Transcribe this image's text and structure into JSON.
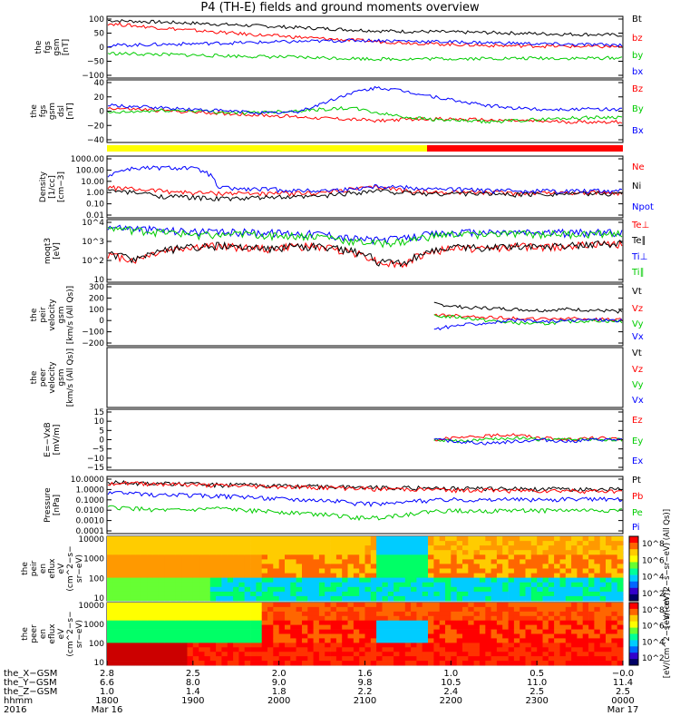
{
  "title": "P4 (TH-E) fields and ground moments overview",
  "chart_data": [
    {
      "type": "line",
      "panel": "fgs-gsm",
      "ylabel": [
        "the",
        "fgs",
        "gsm",
        "[nT]"
      ],
      "ylim": [
        -100,
        100
      ],
      "yticks": [
        "100",
        "50",
        "0",
        "−50",
        "−100"
      ],
      "series": [
        {
          "name": "Bt",
          "color": "#000000",
          "values": [
            95,
            92,
            89,
            86,
            82,
            78,
            74,
            70,
            66,
            62,
            58,
            56,
            55,
            53,
            52,
            50,
            48,
            46,
            45,
            43
          ]
        },
        {
          "name": "bz",
          "color": "#ff0000",
          "values": [
            84,
            76,
            68,
            61,
            54,
            47,
            41,
            36,
            30,
            25,
            20,
            16,
            12,
            9,
            6,
            5,
            4,
            3,
            2,
            2
          ]
        },
        {
          "name": "by",
          "color": "#00cc00",
          "values": [
            -22,
            -24,
            -26,
            -28,
            -30,
            -32,
            -34,
            -36,
            -38,
            -40,
            -42,
            -42,
            -41,
            -41,
            -40,
            -40,
            -39,
            -40,
            -39,
            -38
          ]
        },
        {
          "name": "bx",
          "color": "#0000ff",
          "values": [
            6,
            8,
            10,
            12,
            14,
            16,
            18,
            20,
            22,
            24,
            24,
            22,
            20,
            18,
            16,
            14,
            12,
            10,
            9,
            8
          ]
        }
      ]
    },
    {
      "type": "line",
      "panel": "fgs-gsm-dsl",
      "ylabel": [
        "the",
        "fgs",
        "gsm",
        "dsl",
        "[nT]"
      ],
      "ylim": [
        -50,
        40
      ],
      "yticks": [
        "40",
        "20",
        "0",
        "−20",
        "−40"
      ],
      "series": [
        {
          "name": "Bz",
          "color": "#ff0000",
          "values": [
            0,
            -2,
            -4,
            -6,
            -8,
            -10,
            -12,
            -14,
            -16,
            -18,
            -20,
            -18,
            -17,
            -18,
            -19,
            -20,
            -21,
            -22,
            -22,
            -22
          ]
        },
        {
          "name": "By",
          "color": "#00cc00",
          "values": [
            -8,
            -6,
            -4,
            -4,
            -6,
            -8,
            -6,
            -4,
            -2,
            0,
            -8,
            -14,
            -18,
            -20,
            -22,
            -20,
            -18,
            -16,
            -15,
            -14
          ]
        },
        {
          "name": "Bx",
          "color": "#0000ff",
          "values": [
            4,
            2,
            0,
            -2,
            -4,
            -6,
            -8,
            -6,
            8,
            24,
            32,
            26,
            18,
            10,
            4,
            0,
            -2,
            -2,
            -2,
            -2
          ]
        }
      ]
    },
    {
      "type": "line",
      "panel": "density",
      "ylabel": [
        "Density",
        "[1/cc]",
        "[cm−3]"
      ],
      "yscale": "log",
      "yticks": [
        "1000.00",
        "100.00",
        "10.00",
        "1.00",
        "0.10",
        "0.01"
      ],
      "series": [
        {
          "name": "Ne",
          "color": "#ff0000",
          "values": [
            3,
            2,
            1.5,
            1,
            0.9,
            0.9,
            0.8,
            0.9,
            1,
            2,
            3,
            1.5,
            1,
            1.2,
            1,
            0.9,
            1,
            1,
            1,
            1
          ]
        },
        {
          "name": "Ni",
          "color": "#000000",
          "values": [
            1.5,
            1,
            0.5,
            0.4,
            0.3,
            0.3,
            0.4,
            0.4,
            0.5,
            1,
            1.5,
            1,
            0.8,
            0.9,
            0.8,
            0.7,
            0.8,
            0.8,
            0.8,
            0.8
          ]
        },
        {
          "name": "Npot",
          "color": "#0000ff",
          "values": [
            30,
            150,
            160,
            160,
            3,
            2,
            2,
            1.5,
            1.5,
            2,
            4,
            3,
            2,
            2,
            1.5,
            1.5,
            1.5,
            1.5,
            1.5,
            1.5
          ]
        }
      ]
    },
    {
      "type": "line",
      "panel": "temperature",
      "ylabel": [
        "moqt3",
        "[eV]"
      ],
      "yscale": "log",
      "yticks": [
        "10^4",
        "10^3",
        "10^2",
        "10"
      ],
      "series": [
        {
          "name": "Te⊥",
          "color": "#ff0000",
          "values": [
            200,
            100,
            300,
            500,
            600,
            500,
            400,
            600,
            500,
            300,
            80,
            60,
            300,
            500,
            400,
            600,
            500,
            600,
            700,
            800
          ]
        },
        {
          "name": "Te∥",
          "color": "#000000",
          "values": [
            220,
            110,
            320,
            520,
            620,
            520,
            420,
            620,
            520,
            320,
            90,
            70,
            320,
            520,
            420,
            620,
            520,
            620,
            720,
            820
          ]
        },
        {
          "name": "Ti⊥",
          "color": "#0000ff",
          "values": [
            6000,
            5000,
            4000,
            3500,
            3000,
            3200,
            3000,
            2800,
            2500,
            1500,
            1200,
            1500,
            2500,
            3000,
            3000,
            3000,
            3000,
            3000,
            3000,
            3000
          ]
        },
        {
          "name": "Ti∥",
          "color": "#00cc00",
          "values": [
            5000,
            4000,
            3000,
            2500,
            2000,
            2500,
            2200,
            2000,
            1800,
            1000,
            800,
            1000,
            2000,
            2500,
            2500,
            2500,
            2500,
            2500,
            2500,
            2500
          ]
        }
      ]
    },
    {
      "type": "line",
      "panel": "peir-velocity",
      "ylabel": [
        "the",
        "peir",
        "velocity",
        "gsm",
        "[km/s (All Qs)]"
      ],
      "ylim": [
        -200,
        300
      ],
      "yticks": [
        "300",
        "200",
        "100",
        "0",
        "−100",
        "−200"
      ],
      "series": [
        {
          "name": "Vt",
          "color": "#000000",
          "values": [
            null,
            null,
            null,
            null,
            null,
            null,
            null,
            null,
            null,
            null,
            null,
            null,
            150,
            120,
            110,
            100,
            90,
            100,
            90,
            80
          ]
        },
        {
          "name": "Vz",
          "color": "#ff0000",
          "values": [
            null,
            null,
            null,
            null,
            null,
            null,
            null,
            null,
            null,
            null,
            null,
            null,
            50,
            40,
            30,
            20,
            10,
            20,
            10,
            10
          ]
        },
        {
          "name": "Vy",
          "color": "#00cc00",
          "values": [
            null,
            null,
            null,
            null,
            null,
            null,
            null,
            null,
            null,
            null,
            null,
            null,
            40,
            30,
            0,
            -20,
            -30,
            -10,
            0,
            -10
          ]
        },
        {
          "name": "Vx",
          "color": "#0000ff",
          "values": [
            null,
            null,
            null,
            null,
            null,
            null,
            null,
            null,
            null,
            null,
            null,
            null,
            -80,
            -40,
            -20,
            0,
            -10,
            0,
            10,
            0
          ]
        }
      ]
    },
    {
      "type": "line",
      "panel": "peer-velocity",
      "ylabel": [
        "the",
        "peer",
        "velocity",
        "gsm",
        "[km/s (All Qs)]"
      ],
      "yticks": [],
      "series": [
        {
          "name": "Vt",
          "color": "#000000",
          "values": []
        },
        {
          "name": "Vz",
          "color": "#ff0000",
          "values": []
        },
        {
          "name": "Vy",
          "color": "#00cc00",
          "values": []
        },
        {
          "name": "Vx",
          "color": "#0000ff",
          "values": []
        }
      ]
    },
    {
      "type": "line",
      "panel": "efield",
      "ylabel": [
        "E=−VxB",
        "[mV/m]"
      ],
      "ylim": [
        -15,
        15
      ],
      "yticks": [
        "15",
        "10",
        "5",
        "0",
        "−5",
        "−10",
        "−15"
      ],
      "series": [
        {
          "name": "Ez",
          "color": "#ff0000",
          "values": [
            null,
            null,
            null,
            null,
            null,
            null,
            null,
            null,
            null,
            null,
            null,
            null,
            0,
            1,
            2,
            3,
            1,
            0,
            1,
            0
          ]
        },
        {
          "name": "Ey",
          "color": "#00cc00",
          "values": [
            null,
            null,
            null,
            null,
            null,
            null,
            null,
            null,
            null,
            null,
            null,
            null,
            0,
            -1,
            0,
            1,
            0,
            0,
            0,
            0
          ]
        },
        {
          "name": "Ex",
          "color": "#0000ff",
          "values": [
            null,
            null,
            null,
            null,
            null,
            null,
            null,
            null,
            null,
            null,
            null,
            null,
            0,
            -1,
            -2,
            -1,
            0,
            -1,
            0,
            0
          ]
        }
      ]
    },
    {
      "type": "line",
      "panel": "pressure",
      "ylabel": [
        "Pressure",
        "[nPa]"
      ],
      "yscale": "log",
      "yticks": [
        "10.0000",
        "1.0000",
        "0.1000",
        "0.0100",
        "0.0010",
        "0.0001"
      ],
      "series": [
        {
          "name": "Pt",
          "color": "#000000",
          "values": [
            5,
            4.5,
            4,
            3.5,
            3,
            2.8,
            2.5,
            2.2,
            2,
            1.8,
            1.6,
            1.5,
            1.4,
            1.3,
            1.3,
            1.2,
            1.2,
            1.1,
            1.1,
            1.1
          ]
        },
        {
          "name": "Pb",
          "color": "#ff0000",
          "values": [
            4.5,
            4,
            3.5,
            3,
            2.5,
            2.2,
            2,
            1.8,
            1.6,
            1.4,
            1.2,
            1.1,
            1,
            0.9,
            0.9,
            0.8,
            0.8,
            0.8,
            0.7,
            0.7
          ]
        },
        {
          "name": "Pe",
          "color": "#00cc00",
          "values": [
            0.02,
            0.015,
            0.01,
            0.01,
            0.015,
            0.01,
            0.008,
            0.006,
            0.004,
            0.002,
            0.002,
            0.004,
            0.008,
            0.01,
            0.008,
            0.01,
            0.01,
            0.01,
            0.01,
            0.01
          ]
        },
        {
          "name": "Pi",
          "color": "#0000ff",
          "values": [
            0.5,
            0.4,
            0.3,
            0.3,
            0.25,
            0.2,
            0.15,
            0.12,
            0.1,
            0.05,
            0.04,
            0.06,
            0.1,
            0.12,
            0.1,
            0.12,
            0.1,
            0.12,
            0.12,
            0.12
          ]
        }
      ]
    },
    {
      "type": "heatmap",
      "panel": "peir-en-eflux",
      "ylabel": [
        "the",
        "peir",
        "en",
        "eflux",
        "eV",
        "(cm^2−s−",
        "sr−eV)"
      ],
      "yscale": "log",
      "yticks": [
        "10000",
        "1000",
        "100",
        "10"
      ],
      "colorbar": {
        "label": "[eV/(cm^2−s−sr−eV) (All Qs)]",
        "ticks": [
          "10^8",
          "10^6",
          "10^4",
          "10^2"
        ]
      }
    },
    {
      "type": "heatmap",
      "panel": "peer-en-eflux",
      "ylabel": [
        "the",
        "peer",
        "en",
        "eflux",
        "eV",
        "(cm^2−s−",
        "sr−eV)"
      ],
      "yscale": "log",
      "yticks": [
        "10000",
        "1000",
        "100",
        "10"
      ],
      "colorbar": {
        "label": "[eV/(cm^2−s−sr−eV)]",
        "ticks": [
          "10^8",
          "10^6",
          "10^4",
          "10^2"
        ]
      }
    }
  ],
  "xaxis": {
    "rows": [
      {
        "label": "the_X−GSM",
        "values": [
          "2.8",
          "2.5",
          "2.0",
          "1.6",
          "1.0",
          "0.5",
          "−0.0"
        ]
      },
      {
        "label": "the_Y−GSM",
        "values": [
          "6.6",
          "8.0",
          "9.0",
          "9.8",
          "10.5",
          "11.0",
          "11.4"
        ]
      },
      {
        "label": "the_Z−GSM",
        "values": [
          "1.0",
          "1.4",
          "1.8",
          "2.2",
          "2.4",
          "2.5",
          "2.5"
        ]
      },
      {
        "label": "hhmm",
        "values": [
          "1800",
          "1900",
          "2000",
          "2100",
          "2200",
          "2300",
          "0000"
        ]
      }
    ],
    "year": "2016",
    "start_date": "Mar 16",
    "end_date": "Mar 17"
  },
  "bar": {
    "colors": [
      "#ffff00",
      "#ff0000"
    ]
  },
  "colors": {
    "black": "#000000",
    "red": "#ff0000",
    "green": "#00cc00",
    "blue": "#0000ff"
  }
}
